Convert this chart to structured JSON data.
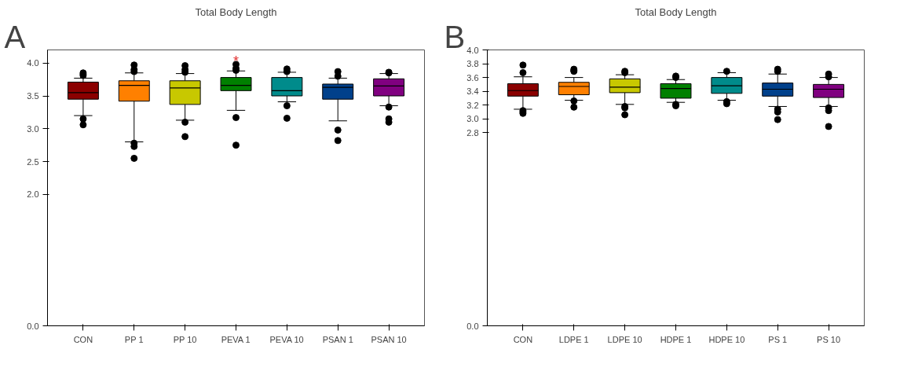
{
  "chart_data": [
    {
      "type": "box",
      "title": "Total Body Length",
      "annotations": [
        "A",
        "*"
      ],
      "categories": [
        "CON",
        "PP 1",
        "PP 10",
        "PEVA 1",
        "PEVA 10",
        "PSAN 1",
        "PSAN 10"
      ],
      "colors": [
        "#8b0000",
        "#ff8000",
        "#c8c800",
        "#008000",
        "#008b8b",
        "#00408b",
        "#800080"
      ],
      "ylim": [
        0,
        4.2
      ],
      "yticks": [
        {
          "value": 0,
          "label": "0.0"
        },
        {
          "value": 2,
          "label": "2.0"
        },
        {
          "value": 2.5,
          "label": "2.5"
        },
        {
          "value": 3,
          "label": "3.0"
        },
        {
          "value": 3.5,
          "label": "3.5"
        },
        {
          "value": 4,
          "label": "4.0"
        }
      ],
      "grid": false,
      "boxes": [
        {
          "low": 3.2,
          "q1": 3.45,
          "median": 3.55,
          "q3": 3.71,
          "high": 3.77,
          "outliers": [
            3.85,
            3.83,
            3.81,
            3.15,
            3.06
          ]
        },
        {
          "low": 2.8,
          "q1": 3.42,
          "median": 3.66,
          "q3": 3.73,
          "high": 3.85,
          "outliers": [
            3.97,
            3.9,
            3.87,
            2.78,
            2.73,
            2.55
          ]
        },
        {
          "low": 3.13,
          "q1": 3.37,
          "median": 3.62,
          "q3": 3.73,
          "high": 3.84,
          "outliers": [
            3.96,
            3.9,
            3.86,
            3.1,
            2.88
          ]
        },
        {
          "low": 3.28,
          "q1": 3.58,
          "median": 3.66,
          "q3": 3.78,
          "high": 3.88,
          "outliers": [
            3.98,
            3.92,
            3.89,
            3.17,
            2.75
          ]
        },
        {
          "low": 3.41,
          "q1": 3.5,
          "median": 3.58,
          "q3": 3.78,
          "high": 3.86,
          "outliers": [
            3.91,
            3.87,
            3.35,
            3.16
          ]
        },
        {
          "low": 3.12,
          "q1": 3.45,
          "median": 3.63,
          "q3": 3.68,
          "high": 3.77,
          "outliers": [
            3.87,
            3.8,
            2.98,
            2.82
          ]
        },
        {
          "low": 3.35,
          "q1": 3.5,
          "median": 3.65,
          "q3": 3.76,
          "high": 3.84,
          "outliers": [
            3.86,
            3.85,
            3.33,
            3.15,
            3.1
          ]
        }
      ]
    },
    {
      "type": "box",
      "title": "Total Body Length",
      "annotations": [
        "B"
      ],
      "categories": [
        "CON",
        "LDPE 1",
        "LDPE 10",
        "HDPE 1",
        "HDPE 10",
        "PS 1",
        "PS 10"
      ],
      "colors": [
        "#8b0000",
        "#ff8000",
        "#c8c800",
        "#008000",
        "#008b8b",
        "#00408b",
        "#800080"
      ],
      "ylim": [
        0,
        4.0
      ],
      "yticks": [
        {
          "value": 0,
          "label": "0.0"
        },
        {
          "value": 2.8,
          "label": "2.8"
        },
        {
          "value": 3.0,
          "label": "3.0"
        },
        {
          "value": 3.2,
          "label": "3.2"
        },
        {
          "value": 3.4,
          "label": "3.4"
        },
        {
          "value": 3.6,
          "label": "3.6"
        },
        {
          "value": 3.8,
          "label": "3.8"
        },
        {
          "value": 4.0,
          "label": "4.0"
        }
      ],
      "grid": false,
      "boxes": [
        {
          "low": 3.14,
          "q1": 3.33,
          "median": 3.41,
          "q3": 3.51,
          "high": 3.61,
          "outliers": [
            3.78,
            3.67,
            3.12,
            3.1,
            3.08
          ]
        },
        {
          "low": 3.27,
          "q1": 3.35,
          "median": 3.47,
          "q3": 3.53,
          "high": 3.6,
          "outliers": [
            3.72,
            3.7,
            3.69,
            3.26,
            3.17
          ]
        },
        {
          "low": 3.21,
          "q1": 3.38,
          "median": 3.46,
          "q3": 3.58,
          "high": 3.64,
          "outliers": [
            3.69,
            3.67,
            3.18,
            3.16,
            3.06
          ]
        },
        {
          "low": 3.24,
          "q1": 3.3,
          "median": 3.44,
          "q3": 3.51,
          "high": 3.57,
          "outliers": [
            3.62,
            3.6,
            3.21,
            3.19
          ]
        },
        {
          "low": 3.27,
          "q1": 3.37,
          "median": 3.48,
          "q3": 3.6,
          "high": 3.67,
          "outliers": [
            3.69,
            3.25,
            3.22
          ]
        },
        {
          "low": 3.18,
          "q1": 3.33,
          "median": 3.43,
          "q3": 3.52,
          "high": 3.65,
          "outliers": [
            3.72,
            3.69,
            3.14,
            3.1,
            2.99
          ]
        },
        {
          "low": 3.18,
          "q1": 3.31,
          "median": 3.43,
          "q3": 3.5,
          "high": 3.6,
          "outliers": [
            3.65,
            3.61,
            3.16,
            3.12,
            2.89
          ]
        }
      ]
    }
  ]
}
